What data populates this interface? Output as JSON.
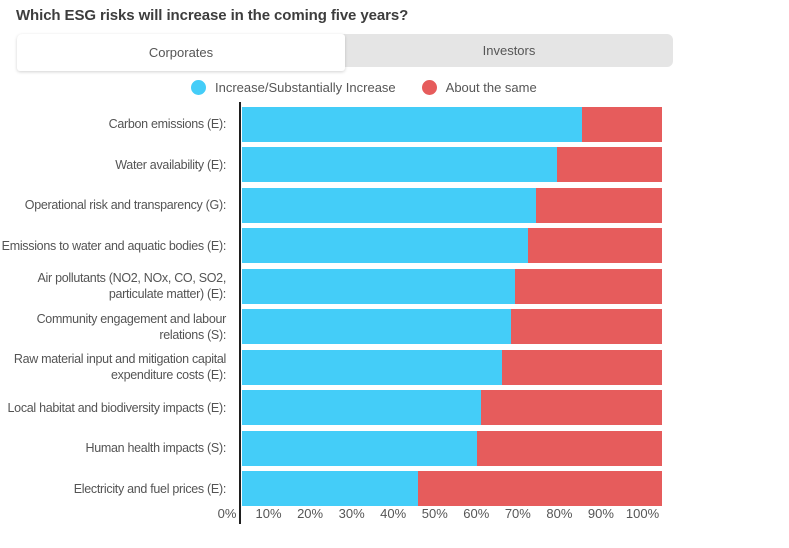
{
  "page": {
    "title": "Which ESG risks will increase in the coming five years?"
  },
  "tabs": [
    {
      "id": "corporates",
      "label": "Corporates",
      "active": true
    },
    {
      "id": "investors",
      "label": "Investors",
      "active": false
    }
  ],
  "legend": [
    {
      "label": "Increase/Substantially Increase",
      "color": "#44CDF8"
    },
    {
      "label": "About the same",
      "color": "#E65C5C"
    }
  ],
  "chart_data": {
    "type": "bar",
    "orientation": "horizontal",
    "stacked": true,
    "title": "Which ESG risks will increase in the coming five years?",
    "active_tab": "Corporates",
    "categories": [
      "Carbon emissions (E):",
      "Water availability (E):",
      "Operational risk and transparency (G):",
      "Emissions to water and aquatic bodies (E):",
      "Air pollutants (NO2, NOx, CO, SO2, particulate matter) (E):",
      "Community engagement and labour relations (S):",
      "Raw material input and mitigation capital expenditure costs (E):",
      "Local habitat and biodiversity impacts (E):",
      "Human health impacts (S):",
      "Electricity and fuel prices (E):"
    ],
    "series": [
      {
        "name": "Increase/Substantially Increase",
        "color": "#44CDF8",
        "values": [
          81,
          75,
          70,
          68,
          65,
          64,
          62,
          57,
          56,
          42
        ]
      },
      {
        "name": "About the same",
        "color": "#E65C5C",
        "values": [
          19,
          25,
          30,
          32,
          35,
          36,
          38,
          43,
          44,
          58
        ]
      }
    ],
    "xlim": [
      0,
      100
    ],
    "x_tick_labels": [
      "0%",
      "10%",
      "20%",
      "30%",
      "40%",
      "50%",
      "60%",
      "70%",
      "80%",
      "90%",
      "100%"
    ],
    "grid": false,
    "legend_position": "top"
  },
  "colors": {
    "series_increase": "#44CDF8",
    "series_same": "#E65C5C",
    "tab_bar_bg": "#E5E5E5",
    "active_tab_bg": "#FFFFFF",
    "title_text": "#3D3D3D",
    "body_text": "#565656",
    "axis_line": "#1F1F1F"
  }
}
